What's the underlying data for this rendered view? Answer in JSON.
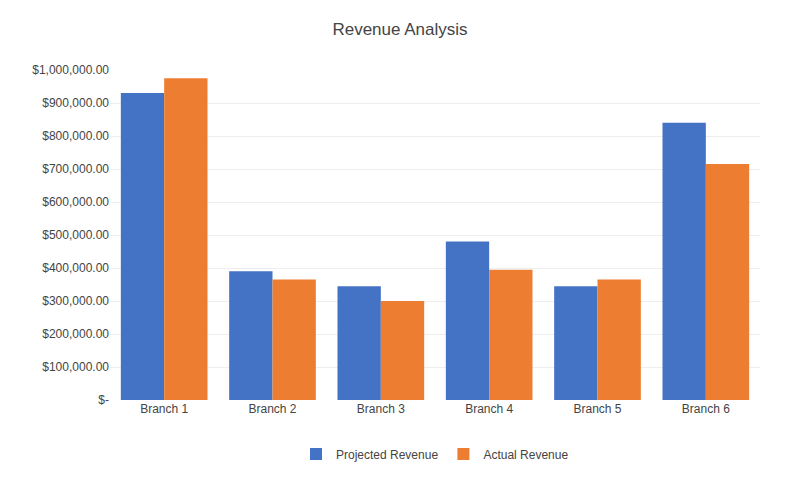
{
  "chart_data": {
    "type": "bar",
    "title": "Revenue Analysis",
    "categories": [
      "Branch 1",
      "Branch 2",
      "Branch 3",
      "Branch 4",
      "Branch 5",
      "Branch 6"
    ],
    "series": [
      {
        "name": "Projected Revenue",
        "color": "#4472C4",
        "values": [
          930000,
          390000,
          345000,
          480000,
          345000,
          840000
        ]
      },
      {
        "name": "Actual Revenue",
        "color": "#ED7D31",
        "values": [
          975000,
          365000,
          300000,
          395000,
          365000,
          715000
        ]
      }
    ],
    "ylim": [
      0,
      1000000
    ],
    "yticks": [
      {
        "value": 0,
        "label": "$-"
      },
      {
        "value": 100000,
        "label": "$100,000.00"
      },
      {
        "value": 200000,
        "label": "$200,000.00"
      },
      {
        "value": 300000,
        "label": "$300,000.00"
      },
      {
        "value": 400000,
        "label": "$400,000.00"
      },
      {
        "value": 500000,
        "label": "$500,000.00"
      },
      {
        "value": 600000,
        "label": "$600,000.00"
      },
      {
        "value": 700000,
        "label": "$700,000.00"
      },
      {
        "value": 800000,
        "label": "$800,000.00"
      },
      {
        "value": 900000,
        "label": "$900,000.00"
      },
      {
        "value": 1000000,
        "label": "$1,000,000.00"
      }
    ],
    "grid": true,
    "legend": "bottom"
  }
}
